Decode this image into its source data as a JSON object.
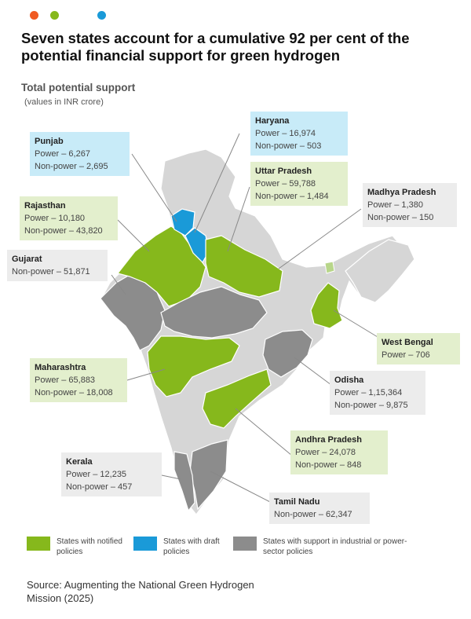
{
  "title": "Seven states account for a cumulative 92 per cent of the potential financial support for green hydrogen",
  "subtitle": "Total potential support",
  "subnote": "(values in INR crore)",
  "colors": {
    "notified": "#86b81c",
    "draft": "#1a9ad8",
    "industrial": "#8c8c8c",
    "other": "#d6d6d6",
    "dot_orange": "#f05a22",
    "dot_green": "#86b81c",
    "dot_blue": "#1a9ad8"
  },
  "states": {
    "punjab": {
      "name": "Punjab",
      "power": "Power – 6,267",
      "nonpower": "Non-power – 2,695"
    },
    "haryana": {
      "name": "Haryana",
      "power": "Power – 16,974",
      "nonpower": "Non-power – 503"
    },
    "uttar_pradesh": {
      "name": "Uttar Pradesh",
      "power": "Power – 59,788",
      "nonpower": "Non-power – 1,484"
    },
    "madhya_pradesh": {
      "name": "Madhya Pradesh",
      "power": "Power – 1,380",
      "nonpower": "Non-power – 150"
    },
    "rajasthan": {
      "name": "Rajasthan",
      "power": "Power – 10,180",
      "nonpower": "Non-power – 43,820"
    },
    "gujarat": {
      "name": "Gujarat",
      "nonpower": "Non-power – 51,871"
    },
    "west_bengal": {
      "name": "West Bengal",
      "power": "Power – 706"
    },
    "maharashtra": {
      "name": "Maharashtra",
      "power": "Power – 65,883",
      "nonpower": "Non-power – 18,008"
    },
    "odisha": {
      "name": "Odisha",
      "power": "Power – 1,15,364",
      "nonpower": "Non-power – 9,875"
    },
    "andhra_pradesh": {
      "name": "Andhra Pradesh",
      "power": "Power – 24,078",
      "nonpower": "Non-power – 848"
    },
    "kerala": {
      "name": "Kerala",
      "power": "Power – 12,235",
      "nonpower": "Non-power – 457"
    },
    "tamil_nadu": {
      "name": "Tamil Nadu",
      "nonpower": "Non-power – 62,347"
    }
  },
  "legend": {
    "notified": "States with notified policies",
    "draft": "States with draft policies",
    "industrial": "States with support in industrial or power-sector policies"
  },
  "source": "Source: Augmenting the National Green Hydrogen Mission (2025)"
}
